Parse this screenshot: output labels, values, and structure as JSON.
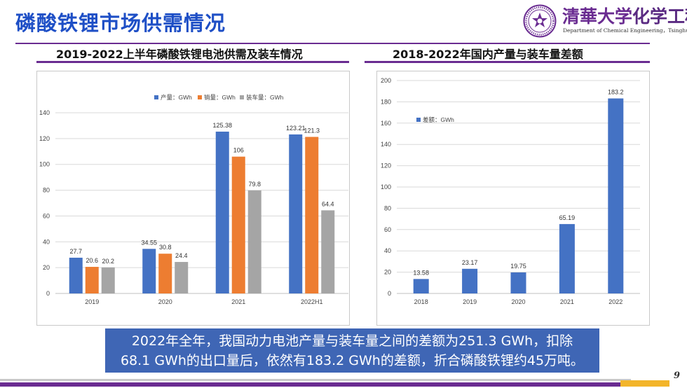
{
  "slide": {
    "title": "磷酸铁锂市场供需情况",
    "university": "清華大学",
    "university_rest": "化学工程系",
    "department": "Department of Chemical Engineering，Tsinghua University",
    "page_number": "9"
  },
  "left_header": "2019-2022上半年磷酸铁锂电池供需及装车情况",
  "right_header": "2018-2022年国内产量与装车量差额",
  "callout": {
    "line1": "2022年全年，我国动力电池产量与装车量之间的差额为251.3 GWh，扣除",
    "line2": "68.1 GWh的出口量后，依然有183.2 GWh的差额，折合磷酸铁锂约45万吨。"
  },
  "colors": {
    "title_blue": "#1e4fc6",
    "purple": "#6a2c91",
    "blue": "#4472c4",
    "orange": "#ed7d31",
    "gray": "#a5a5a5",
    "callout_bg": "#3f66b5",
    "gold": "#f3b52b"
  },
  "chart_data": [
    {
      "type": "bar",
      "categories": [
        "2019",
        "2020",
        "2021",
        "2022H1"
      ],
      "series": [
        {
          "name": "产量：GWh",
          "values": [
            27.7,
            34.55,
            125.38,
            123.21
          ]
        },
        {
          "name": "销量：GWh",
          "values": [
            20.6,
            30.8,
            106,
            121.3
          ]
        },
        {
          "name": "装车量：GWh",
          "values": [
            20.2,
            24.4,
            79.8,
            64.4
          ]
        }
      ],
      "value_labels": [
        [
          "27.7",
          "34.55",
          "125.38",
          "123.21"
        ],
        [
          "20.6",
          "30.8",
          "106",
          "121.3"
        ],
        [
          "20.2",
          "24.4",
          "79.8",
          "64.4"
        ]
      ],
      "ylim": [
        0,
        140
      ],
      "yticks": [
        0,
        20,
        40,
        60,
        80,
        100,
        120,
        140
      ],
      "grid": true,
      "legend": "top-center"
    },
    {
      "type": "bar",
      "categories": [
        "2018",
        "2019",
        "2020",
        "2021",
        "2022"
      ],
      "series": [
        {
          "name": "差额：GWh",
          "values": [
            13.58,
            23.17,
            19.75,
            65.19,
            183.2
          ]
        }
      ],
      "value_labels": [
        [
          "13.58",
          "23.17",
          "19.75",
          "65.19",
          "183.2"
        ]
      ],
      "ylim": [
        0,
        200
      ],
      "yticks": [
        0,
        20,
        40,
        60,
        80,
        100,
        120,
        140,
        160,
        180,
        200
      ],
      "grid": true,
      "legend": "inside-top-left"
    }
  ]
}
